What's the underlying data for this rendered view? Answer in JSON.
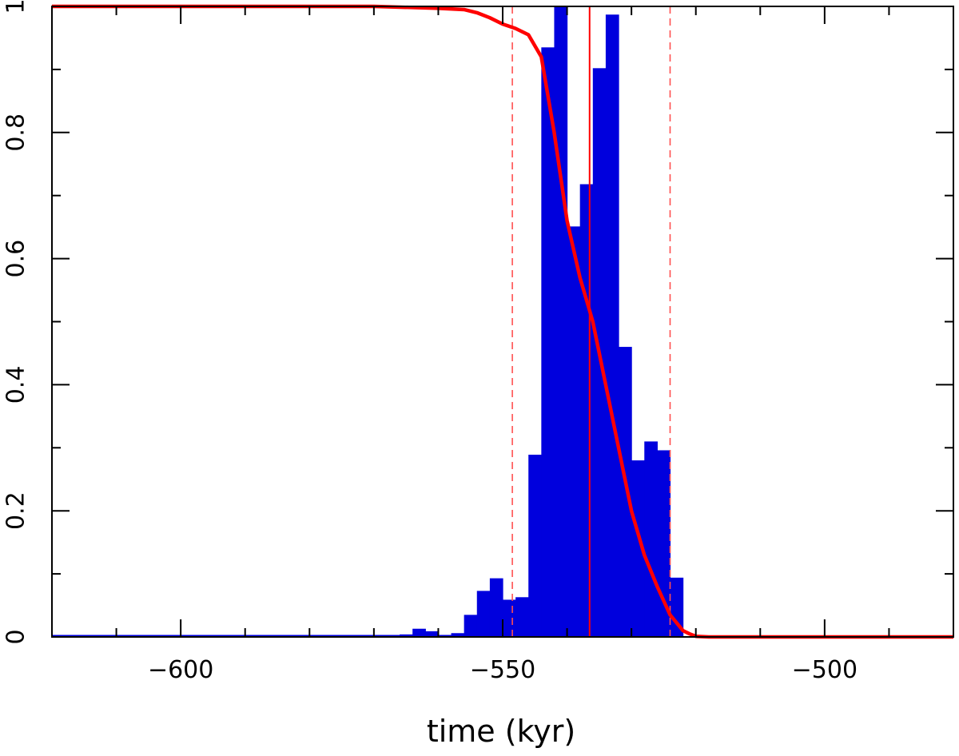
{
  "chart_data": {
    "type": "bar",
    "title": "",
    "xlabel": "time (kyr)",
    "ylabel": "",
    "xlim": [
      -620,
      -480
    ],
    "ylim": [
      0,
      1
    ],
    "grid": false,
    "x_ticks": [
      -600,
      -550,
      -500
    ],
    "x_tick_labels": [
      "−600",
      "−550",
      "−500"
    ],
    "y_ticks": [
      0,
      0.2,
      0.4,
      0.6,
      0.8,
      1
    ],
    "y_tick_labels": [
      "0",
      "0.2",
      "0.4",
      "0.6",
      "0.8",
      "1"
    ],
    "histogram": {
      "color": "#0000dd",
      "bin_width": 2,
      "bins": [
        [
          -568,
          0.002
        ],
        [
          -566,
          0.004
        ],
        [
          -564,
          0.013
        ],
        [
          -562,
          0.009
        ],
        [
          -560,
          0.003
        ],
        [
          -558,
          0.006
        ],
        [
          -556,
          0.035
        ],
        [
          -554,
          0.073
        ],
        [
          -552,
          0.093
        ],
        [
          -550,
          0.059
        ],
        [
          -548,
          0.063
        ],
        [
          -546,
          0.289
        ],
        [
          -544,
          0.935
        ],
        [
          -542,
          1.0
        ],
        [
          -540,
          0.651
        ],
        [
          -538,
          0.718
        ],
        [
          -536,
          0.902
        ],
        [
          -534,
          0.987
        ],
        [
          -532,
          0.46
        ],
        [
          -530,
          0.28
        ],
        [
          -528,
          0.31
        ],
        [
          -526,
          0.296
        ],
        [
          -524,
          0.094
        ],
        [
          -522,
          0.0
        ]
      ]
    },
    "cumulative_line": {
      "color": "#ff0000",
      "x": [
        -620,
        -570,
        -560,
        -556,
        -554,
        -552,
        -550,
        -548,
        -546,
        -544,
        -542,
        -540,
        -538,
        -536,
        -534,
        -532,
        -530,
        -528,
        -526,
        -524,
        -522,
        -521,
        -520,
        -518,
        -480
      ],
      "y": [
        1.0,
        1.0,
        0.997,
        0.995,
        0.99,
        0.982,
        0.972,
        0.965,
        0.955,
        0.92,
        0.8,
        0.66,
        0.57,
        0.5,
        0.4,
        0.3,
        0.2,
        0.13,
        0.08,
        0.035,
        0.01,
        0.005,
        0.001,
        0.0,
        0.0
      ]
    },
    "reference_lines": [
      {
        "x": -536.5,
        "style": "solid",
        "color": "#ff0000"
      },
      {
        "x": -548.5,
        "style": "dashed",
        "color": "#ff5050"
      },
      {
        "x": -524,
        "style": "dashed",
        "color": "#ff5050"
      }
    ]
  }
}
